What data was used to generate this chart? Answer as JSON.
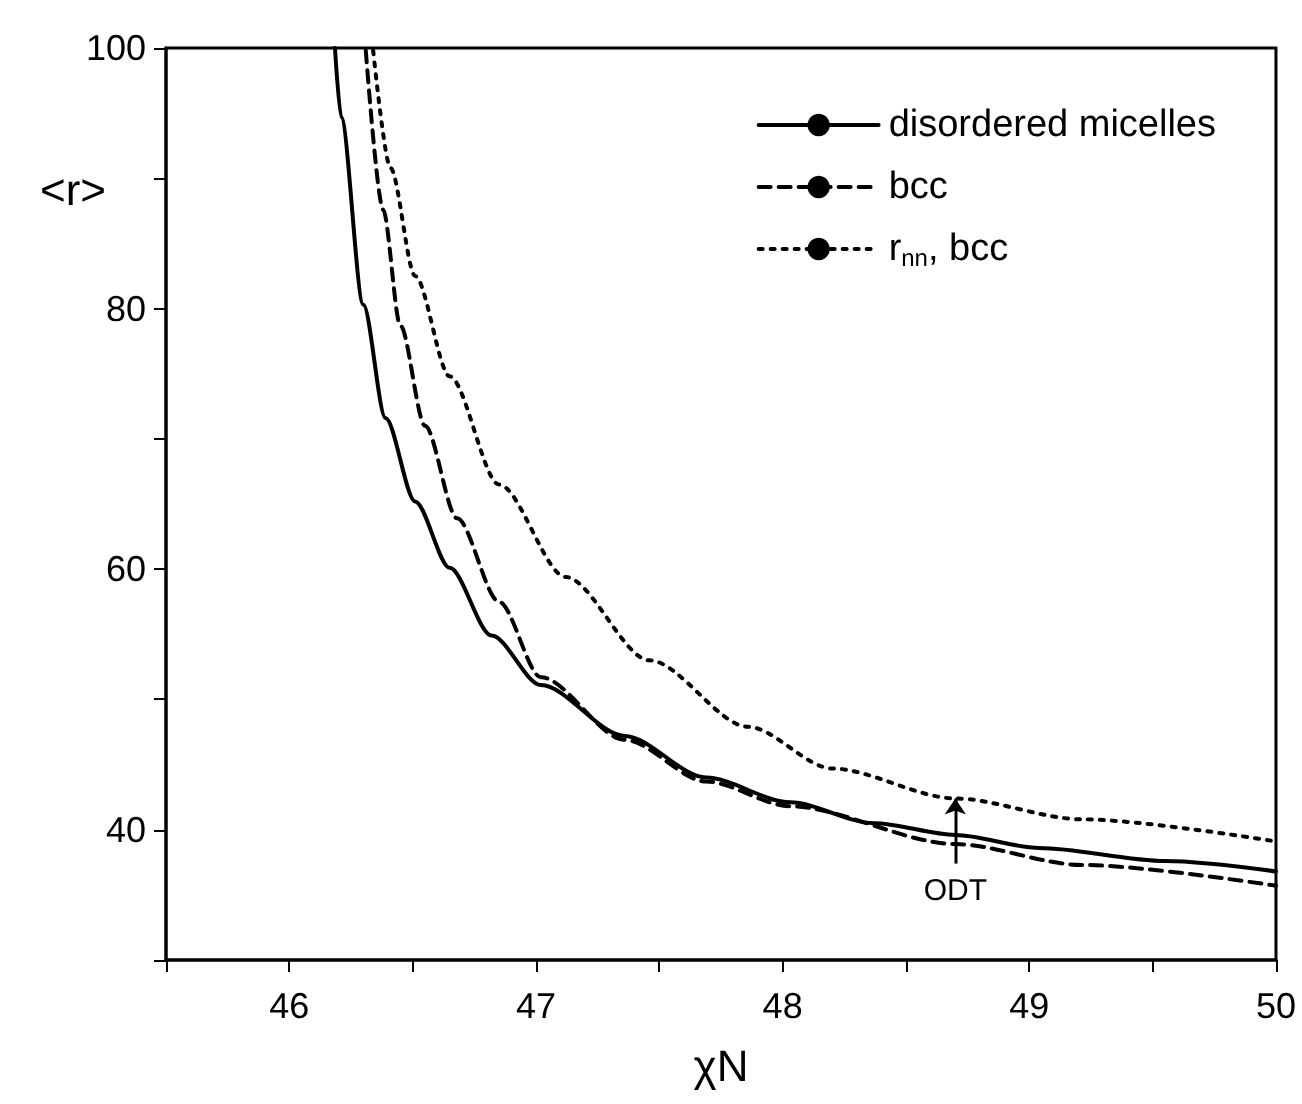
{
  "chart_data": {
    "type": "line",
    "xlabel": "χN",
    "ylabel": "<r>",
    "xlim": [
      45.5,
      50
    ],
    "xticks": [
      {
        "value": 45.5,
        "label": null
      },
      46,
      {
        "value": 46.5,
        "label": null
      },
      47,
      {
        "value": 47.5,
        "label": null
      },
      48,
      {
        "value": 48.5,
        "label": null
      },
      49,
      {
        "value": 49.5,
        "label": null
      },
      50
    ],
    "ylim": [
      30,
      100
    ],
    "yticks": [
      {
        "value": 30,
        "label": null
      },
      40,
      {
        "value": 50,
        "label": null
      },
      60,
      {
        "value": 70,
        "label": null
      },
      80,
      {
        "value": 90,
        "label": null
      },
      100
    ],
    "grid": false,
    "legend": "top right",
    "marker": "none",
    "annotations": [
      {
        "text": "ODT",
        "x": 48.7,
        "y": 39.6
      }
    ],
    "series": [
      {
        "name": "disordered micelles",
        "color": "#000000",
        "line_style": "solid",
        "x": [
          46.185,
          46.21,
          46.3,
          46.39,
          46.51,
          46.65,
          46.82,
          47.02,
          47.36,
          47.69,
          48.03,
          48.37,
          48.7,
          49.04,
          49.55,
          50.0
        ],
        "values": [
          100,
          94.7,
          80.3,
          71.6,
          65.2,
          60.1,
          54.9,
          51.1,
          47.2,
          44.0,
          42.1,
          40.5,
          39.6,
          38.6,
          37.6,
          36.8
        ]
      },
      {
        "name": "bcc",
        "color": "#000000",
        "line_style": "dashed",
        "x": [
          46.31,
          46.38,
          46.45,
          46.55,
          46.68,
          46.85,
          47.02,
          47.36,
          47.69,
          48.03,
          48.7,
          49.21,
          50.0
        ],
        "values": [
          99.8,
          87.6,
          78.7,
          71.0,
          63.9,
          57.5,
          51.7,
          46.9,
          43.7,
          41.8,
          38.9,
          37.3,
          35.7
        ]
      },
      {
        "name": "r$_{nn}$, bcc",
        "color": "#000000",
        "line_style": "dotted",
        "x": [
          46.34,
          46.41,
          46.51,
          46.65,
          46.85,
          47.12,
          47.46,
          47.86,
          48.2,
          48.7,
          49.21,
          50.0
        ],
        "values": [
          99.8,
          90.8,
          82.5,
          74.8,
          66.5,
          59.4,
          53.0,
          47.9,
          44.7,
          42.4,
          40.8,
          39.1
        ]
      }
    ]
  }
}
